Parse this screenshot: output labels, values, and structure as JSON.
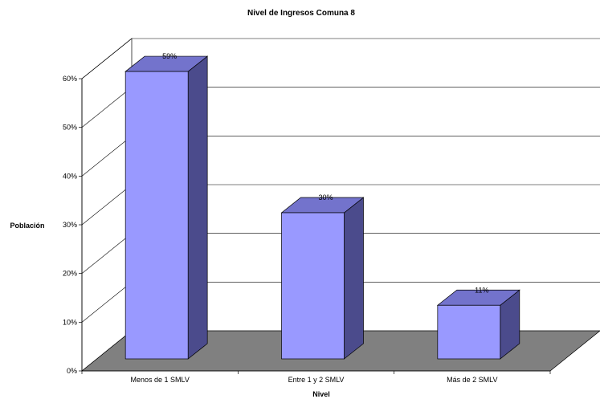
{
  "chart_data": {
    "type": "bar",
    "title": "Nivel de Ingresos Comuna 8",
    "xlabel": "Nivel",
    "ylabel": "Población",
    "categories": [
      "Menos de 1 SMLV",
      "Entre 1 y 2 SMLV",
      "Más de 2 SMLV"
    ],
    "values": [
      59,
      30,
      11
    ],
    "data_labels": [
      "59%",
      "30%",
      "11%"
    ],
    "ylim": [
      0,
      60
    ],
    "yticks": [
      "0%",
      "10%",
      "20%",
      "30%",
      "40%",
      "50%",
      "60%"
    ],
    "grid": true,
    "style": "3d-column",
    "colors": {
      "bar_front": "#9999ff",
      "bar_side": "#4b4b8c",
      "bar_top": "#7373cc",
      "floor": "#808080"
    }
  }
}
